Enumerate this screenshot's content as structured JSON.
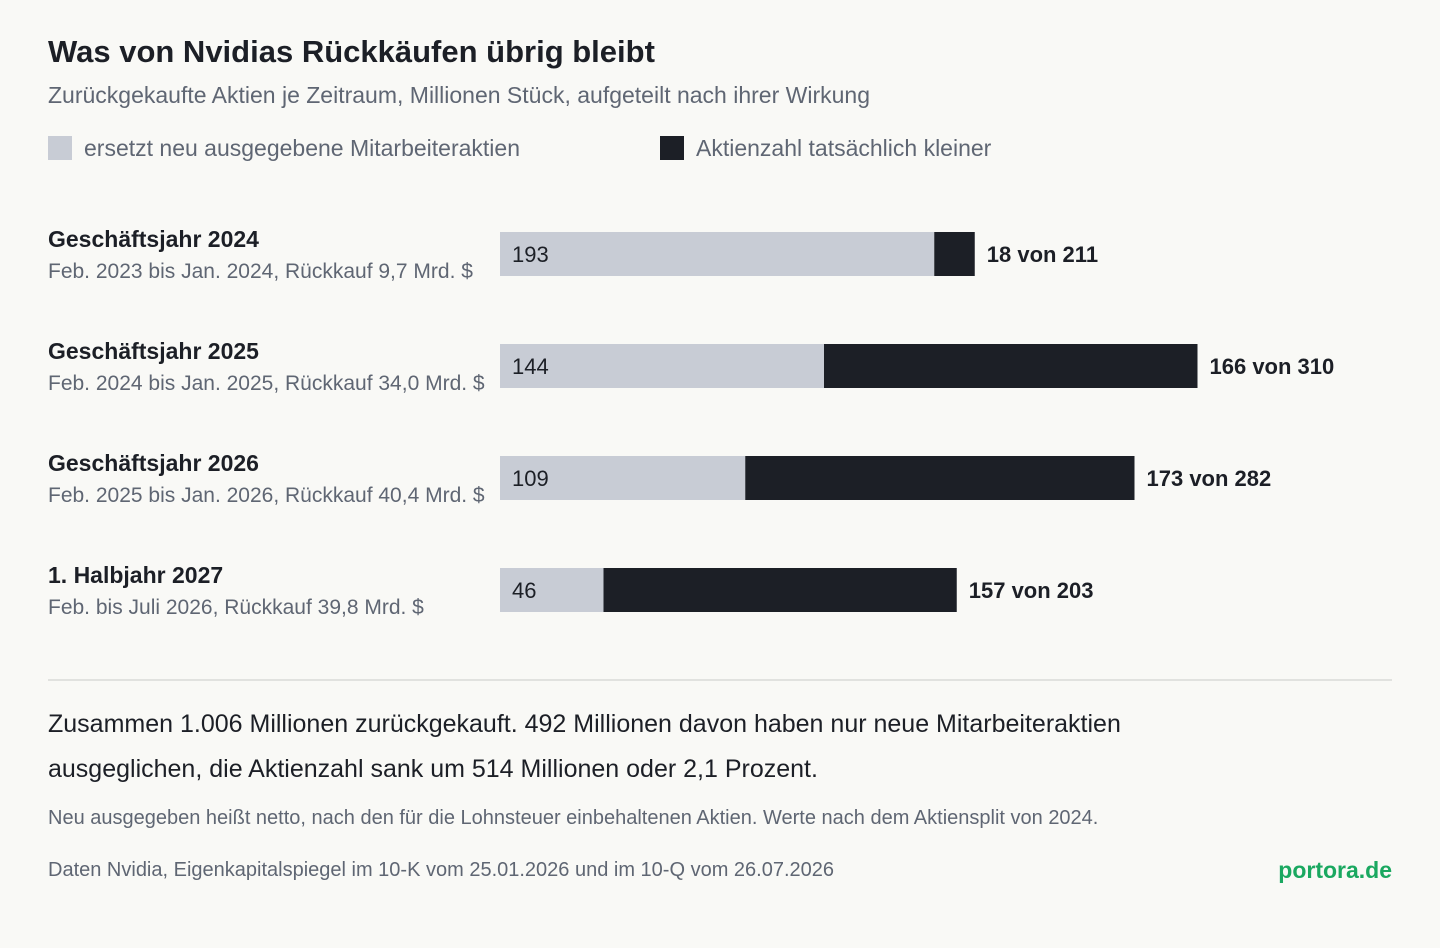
{
  "header": {
    "title": "Was von Nvidias Rückkäufen übrig bleibt",
    "subtitle": "Zurückgekaufte Aktien je Zeitraum, Millionen Stück, aufgeteilt nach ihrer Wirkung"
  },
  "colors": {
    "offset": "#c8ccd5",
    "net": "#1c1f26",
    "background": "#f9f9f6",
    "brand": "#1aa860"
  },
  "chart_data": {
    "type": "bar",
    "orientation": "horizontal",
    "stacked": true,
    "categories": [
      "Geschäftsjahr 2024",
      "Geschäftsjahr 2025",
      "Geschäftsjahr 2026",
      "1. Halbjahr 2027"
    ],
    "category_details": [
      "Feb. 2023 bis Jan. 2024, Rückkauf 9,7 Mrd. $",
      "Feb. 2024 bis Jan. 2025, Rückkauf 34,0 Mrd. $",
      "Feb. 2025 bis Jan. 2026, Rückkauf 40,4 Mrd. $",
      "Feb. bis Juli 2026, Rückkauf 39,8 Mrd. $"
    ],
    "series": [
      {
        "name": "ersetzt neu ausgegebene Mitarbeiteraktien",
        "values": [
          193,
          144,
          109,
          46
        ]
      },
      {
        "name": "Aktienzahl tatsächlich kleiner",
        "values": [
          18,
          166,
          173,
          157
        ]
      }
    ],
    "segment_labels": [
      "193",
      "144",
      "109",
      "46"
    ],
    "end_labels": [
      "18 von 211",
      "166 von 310",
      "173 von 282",
      "157 von 203"
    ],
    "totals": [
      211,
      310,
      282,
      203
    ],
    "legend_position": "top",
    "grid": false
  },
  "footer": {
    "summary": "Zusammen 1.006 Millionen zurückgekauft. 492 Millionen davon haben nur neue Mitarbeiteraktien ausgeglichen, die Aktienzahl sank um 514 Millionen oder 2,1 Prozent.",
    "note": "Neu ausgegeben heißt netto, nach den für die Lohnsteuer einbehaltenen Aktien. Werte nach dem Aktiensplit von 2024.",
    "source": "Daten Nvidia, Eigenkapitalspiegel im 10-K vom 25.01.2026 und im 10-Q vom 26.07.2026",
    "brand": "portora.de"
  }
}
